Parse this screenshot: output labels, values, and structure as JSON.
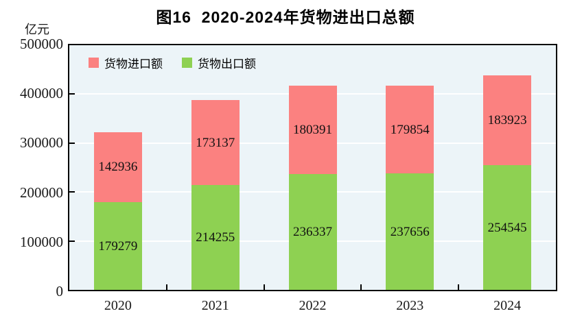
{
  "chart": {
    "title": "图16  2020-2024年货物进出口总额",
    "unit_label": "亿元"
  },
  "legend": {
    "import_label": "货物进口额",
    "export_label": "货物出口额"
  },
  "colors": {
    "import": "#fb8180",
    "export": "#8ed152",
    "plot_background": "#ecf4f8",
    "gridline": "#ffffff",
    "frame": "#000000",
    "text": "#000000"
  },
  "chart_data": {
    "type": "bar",
    "stacked": true,
    "title": "图16  2020-2024年货物进出口总额",
    "ylabel": "亿元",
    "xlabel": "",
    "categories": [
      "2020",
      "2021",
      "2022",
      "2023",
      "2024"
    ],
    "series": [
      {
        "key": "export",
        "name": "货物出口额",
        "color": "#8ed152",
        "values": [
          179279,
          214255,
          236337,
          237656,
          254545
        ]
      },
      {
        "key": "import",
        "name": "货物进口额",
        "color": "#fb8180",
        "values": [
          142936,
          173137,
          180391,
          179854,
          183923
        ]
      }
    ],
    "ylim": [
      0,
      500000
    ],
    "ytick_interval": 100000,
    "yticks": [
      "0",
      "100000",
      "200000",
      "300000",
      "400000",
      "500000"
    ],
    "grid": true,
    "legend_position": "top-left"
  }
}
